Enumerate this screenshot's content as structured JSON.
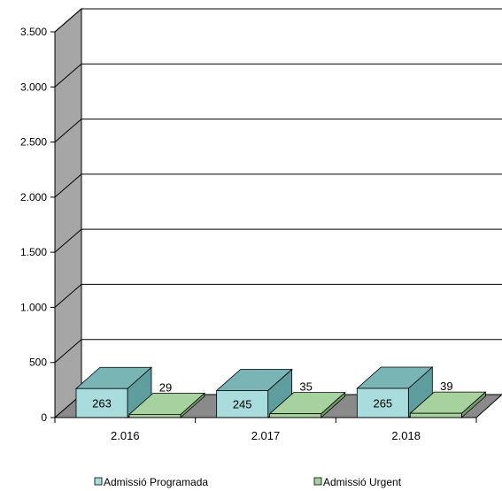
{
  "chart_data": {
    "type": "bar",
    "style": "3d-clustered-column",
    "title": "",
    "xlabel": "",
    "ylabel": "",
    "categories": [
      "2.016",
      "2.017",
      "2.018"
    ],
    "series": [
      {
        "name": "Admissió Programada",
        "values": [
          263,
          245,
          265
        ],
        "labels": [
          "263",
          "245",
          "265"
        ],
        "color": "#a9dcdc",
        "side_color": "#5e9e9e",
        "top_color": "#7ab5b5"
      },
      {
        "name": "Admissió Urgent",
        "values": [
          29,
          35,
          39
        ],
        "labels": [
          "29",
          "35",
          "39"
        ],
        "color": "#a8d1a0",
        "side_color": "#6f9d67",
        "top_color": "#a8d1a0"
      }
    ],
    "y_ticks": [
      0,
      500,
      1000,
      1500,
      2000,
      2500,
      3000,
      3500
    ],
    "y_tick_labels": [
      "0",
      "500",
      "1.000",
      "1.500",
      "2.000",
      "2.500",
      "3.000",
      "3.500"
    ],
    "ylim": [
      0,
      3500
    ],
    "grid": true,
    "legend_position": "bottom",
    "colors": {
      "wall": "#a6a6a6",
      "floor": "#8a8a8a",
      "gridline": "#000000"
    }
  }
}
